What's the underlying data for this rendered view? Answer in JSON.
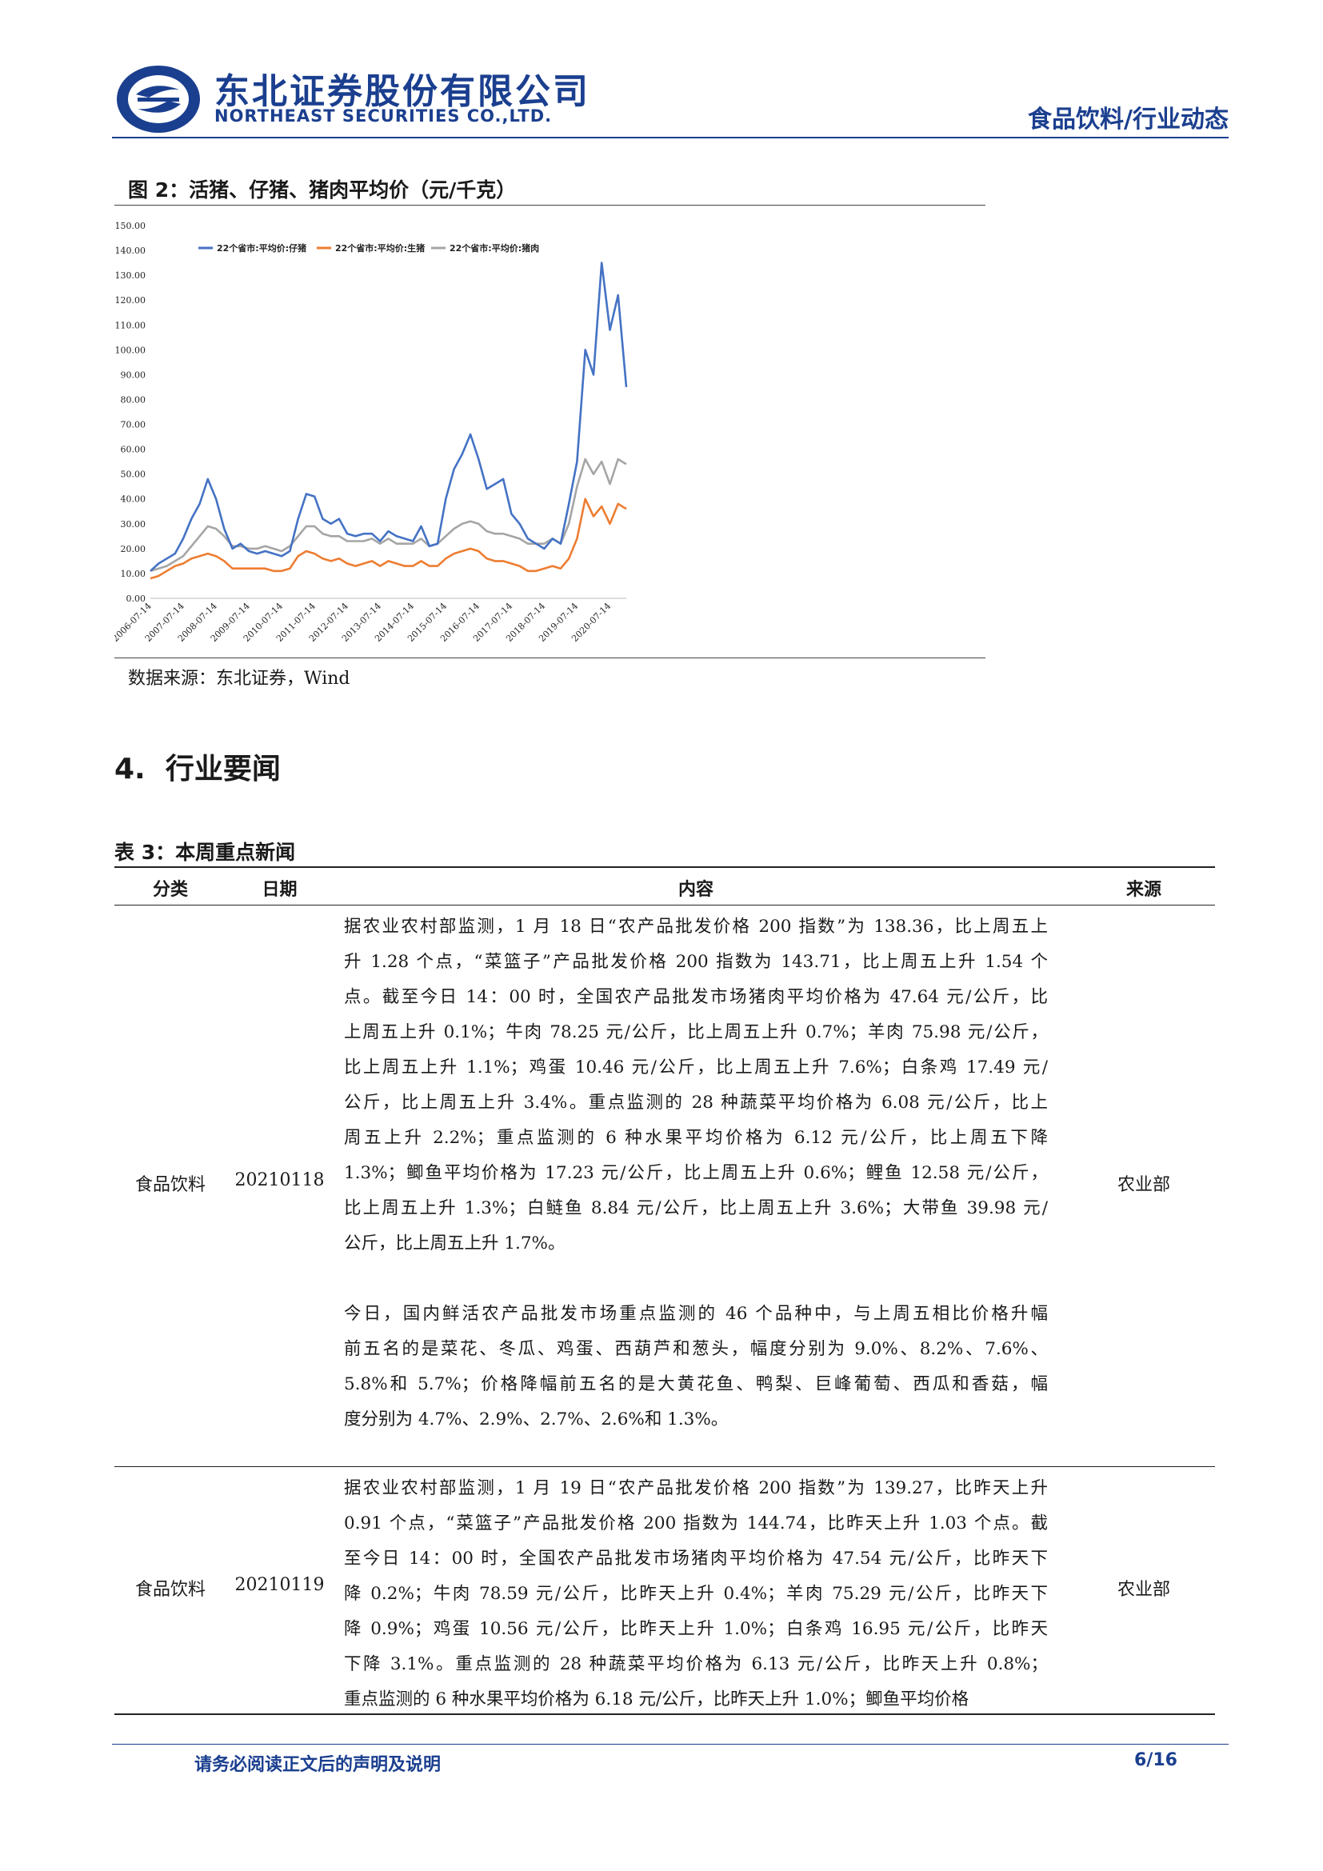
{
  "header": {
    "company_cn": "东北证券股份有限公司",
    "company_en": "NORTHEAST SECURITIES CO.,LTD.",
    "section": "食品饮料/行业动态",
    "brand_color": "#1b3f8f"
  },
  "figure": {
    "title": "图 2：活猪、仔猪、猪肉平均价（元/千克）",
    "source": "数据来源：东北证券，Wind"
  },
  "chart_data": {
    "type": "line",
    "title": "",
    "xlabel": "",
    "ylabel": "",
    "ylim": [
      0,
      150
    ],
    "yticks": [
      "0.00",
      "10.00",
      "20.00",
      "30.00",
      "40.00",
      "50.00",
      "60.00",
      "70.00",
      "80.00",
      "90.00",
      "100.00",
      "110.00",
      "120.00",
      "130.00",
      "140.00",
      "150.00"
    ],
    "xticks": [
      "2006-07-14",
      "2007-07-14",
      "2008-07-14",
      "2009-07-14",
      "2010-07-14",
      "2011-07-14",
      "2012-07-14",
      "2013-07-14",
      "2014-07-14",
      "2015-07-14",
      "2016-07-14",
      "2017-07-14",
      "2018-07-14",
      "2019-07-14",
      "2020-07-14"
    ],
    "grid": false,
    "legend_position": "top",
    "x": [
      2006.5,
      2006.75,
      2007.0,
      2007.25,
      2007.5,
      2007.75,
      2008.0,
      2008.25,
      2008.5,
      2008.75,
      2009.0,
      2009.25,
      2009.5,
      2009.75,
      2010.0,
      2010.25,
      2010.5,
      2010.75,
      2011.0,
      2011.25,
      2011.5,
      2011.75,
      2012.0,
      2012.25,
      2012.5,
      2012.75,
      2013.0,
      2013.25,
      2013.5,
      2013.75,
      2014.0,
      2014.25,
      2014.5,
      2014.75,
      2015.0,
      2015.25,
      2015.5,
      2015.75,
      2016.0,
      2016.25,
      2016.5,
      2016.75,
      2017.0,
      2017.25,
      2017.5,
      2017.75,
      2018.0,
      2018.25,
      2018.5,
      2018.75,
      2019.0,
      2019.25,
      2019.5,
      2019.75,
      2020.0,
      2020.25,
      2020.5,
      2020.75,
      2021.0
    ],
    "series": [
      {
        "name": "22个省市:平均价:仔猪",
        "color": "#4472c4",
        "values": [
          11,
          14,
          16,
          18,
          24,
          32,
          38,
          48,
          40,
          28,
          20,
          22,
          19,
          18,
          19,
          18,
          17,
          19,
          32,
          42,
          41,
          32,
          30,
          32,
          26,
          25,
          26,
          26,
          23,
          27,
          25,
          24,
          23,
          29,
          21,
          22,
          40,
          52,
          58,
          66,
          56,
          44,
          46,
          48,
          34,
          30,
          24,
          22,
          20,
          24,
          22,
          38,
          55,
          100,
          90,
          135,
          108,
          122,
          85
        ]
      },
      {
        "name": "22个省市:平均价:生猪",
        "color": "#ed7d31",
        "values": [
          8,
          9,
          11,
          13,
          14,
          16,
          17,
          18,
          17,
          15,
          12,
          12,
          12,
          12,
          12,
          11,
          11,
          12,
          17,
          19,
          18,
          16,
          15,
          16,
          14,
          13,
          14,
          15,
          13,
          15,
          14,
          13,
          13,
          15,
          13,
          13,
          16,
          18,
          19,
          20,
          19,
          16,
          15,
          15,
          14,
          13,
          11,
          11,
          12,
          13,
          12,
          16,
          24,
          40,
          33,
          37,
          30,
          38,
          36
        ]
      },
      {
        "name": "22个省市:平均价:猪肉",
        "color": "#a5a5a5",
        "values": [
          11,
          12,
          13,
          15,
          17,
          21,
          25,
          29,
          28,
          25,
          21,
          21,
          20,
          20,
          21,
          20,
          19,
          21,
          25,
          29,
          29,
          26,
          25,
          25,
          23,
          23,
          23,
          24,
          22,
          24,
          22,
          22,
          22,
          24,
          21,
          22,
          25,
          28,
          30,
          31,
          30,
          27,
          26,
          26,
          25,
          24,
          22,
          22,
          22,
          24,
          22,
          30,
          45,
          56,
          50,
          55,
          46,
          56,
          54
        ]
      }
    ]
  },
  "section": {
    "number": "4.",
    "title": "行业要闻"
  },
  "table": {
    "caption": "表 3：本周重点新闻",
    "headers": {
      "category": "分类",
      "date": "日期",
      "content": "内容",
      "source": "来源"
    },
    "rows": [
      {
        "category": "食品饮料",
        "date": "20210118",
        "source": "农业部",
        "content": [
          "据农业农村部监测，1 月 18 日“农产品批发价格 200 指数”为 138.36，比上周五上",
          "升 1.28 个点，“菜篮子”产品批发价格 200 指数为 143.71，比上周五上升 1.54 个",
          "点。截至今日 14：00 时，全国农产品批发市场猪肉平均价格为 47.64 元/公斤，比",
          "上周五上升 0.1%；牛肉 78.25 元/公斤，比上周五上升 0.7%；羊肉 75.98 元/公斤，",
          "比上周五上升 1.1%；鸡蛋 10.46 元/公斤，比上周五上升 7.6%；白条鸡 17.49 元/",
          "公斤，比上周五上升 3.4%。重点监测的 28 种蔬菜平均价格为 6.08 元/公斤，比上",
          "周五上升 2.2%；重点监测的 6 种水果平均价格为 6.12 元/公斤，比上周五下降",
          "1.3%；鲫鱼平均价格为 17.23 元/公斤，比上周五上升 0.6%；鲤鱼 12.58 元/公斤，",
          "比上周五上升 1.3%；白鲢鱼 8.84 元/公斤，比上周五上升 3.6%；大带鱼 39.98 元/",
          "公斤，比上周五上升 1.7%。",
          "",
          "今日，国内鲜活农产品批发市场重点监测的 46 个品种中，与上周五相比价格升幅",
          "前五名的是菜花、冬瓜、鸡蛋、西葫芦和葱头，幅度分别为 9.0%、8.2%、7.6%、",
          "5.8%和 5.7%；价格降幅前五名的是大黄花鱼、鸭梨、巨峰葡萄、西瓜和香菇，幅",
          "度分别为 4.7%、2.9%、2.7%、2.6%和 1.3%。"
        ]
      },
      {
        "category": "食品饮料",
        "date": "20210119",
        "source": "农业部",
        "content": [
          "据农业农村部监测，1 月 19 日“农产品批发价格 200 指数”为 139.27，比昨天上升",
          "0.91 个点，“菜篮子”产品批发价格 200 指数为 144.74，比昨天上升 1.03 个点。截",
          "至今日 14：00 时，全国农产品批发市场猪肉平均价格为 47.54 元/公斤，比昨天下",
          "降 0.2%；牛肉 78.59 元/公斤，比昨天上升 0.4%；羊肉 75.29 元/公斤，比昨天下",
          "降 0.9%；鸡蛋 10.56 元/公斤，比昨天上升 1.0%；白条鸡 16.95 元/公斤，比昨天",
          "下降 3.1%。重点监测的 28 种蔬菜平均价格为 6.13 元/公斤，比昨天上升 0.8%；",
          "重点监测的 6 种水果平均价格为 6.18 元/公斤，比昨天上升 1.0%；鲫鱼平均价格"
        ]
      }
    ]
  },
  "footer": {
    "note": "请务必阅读正文后的声明及说明",
    "page": "6/16"
  }
}
